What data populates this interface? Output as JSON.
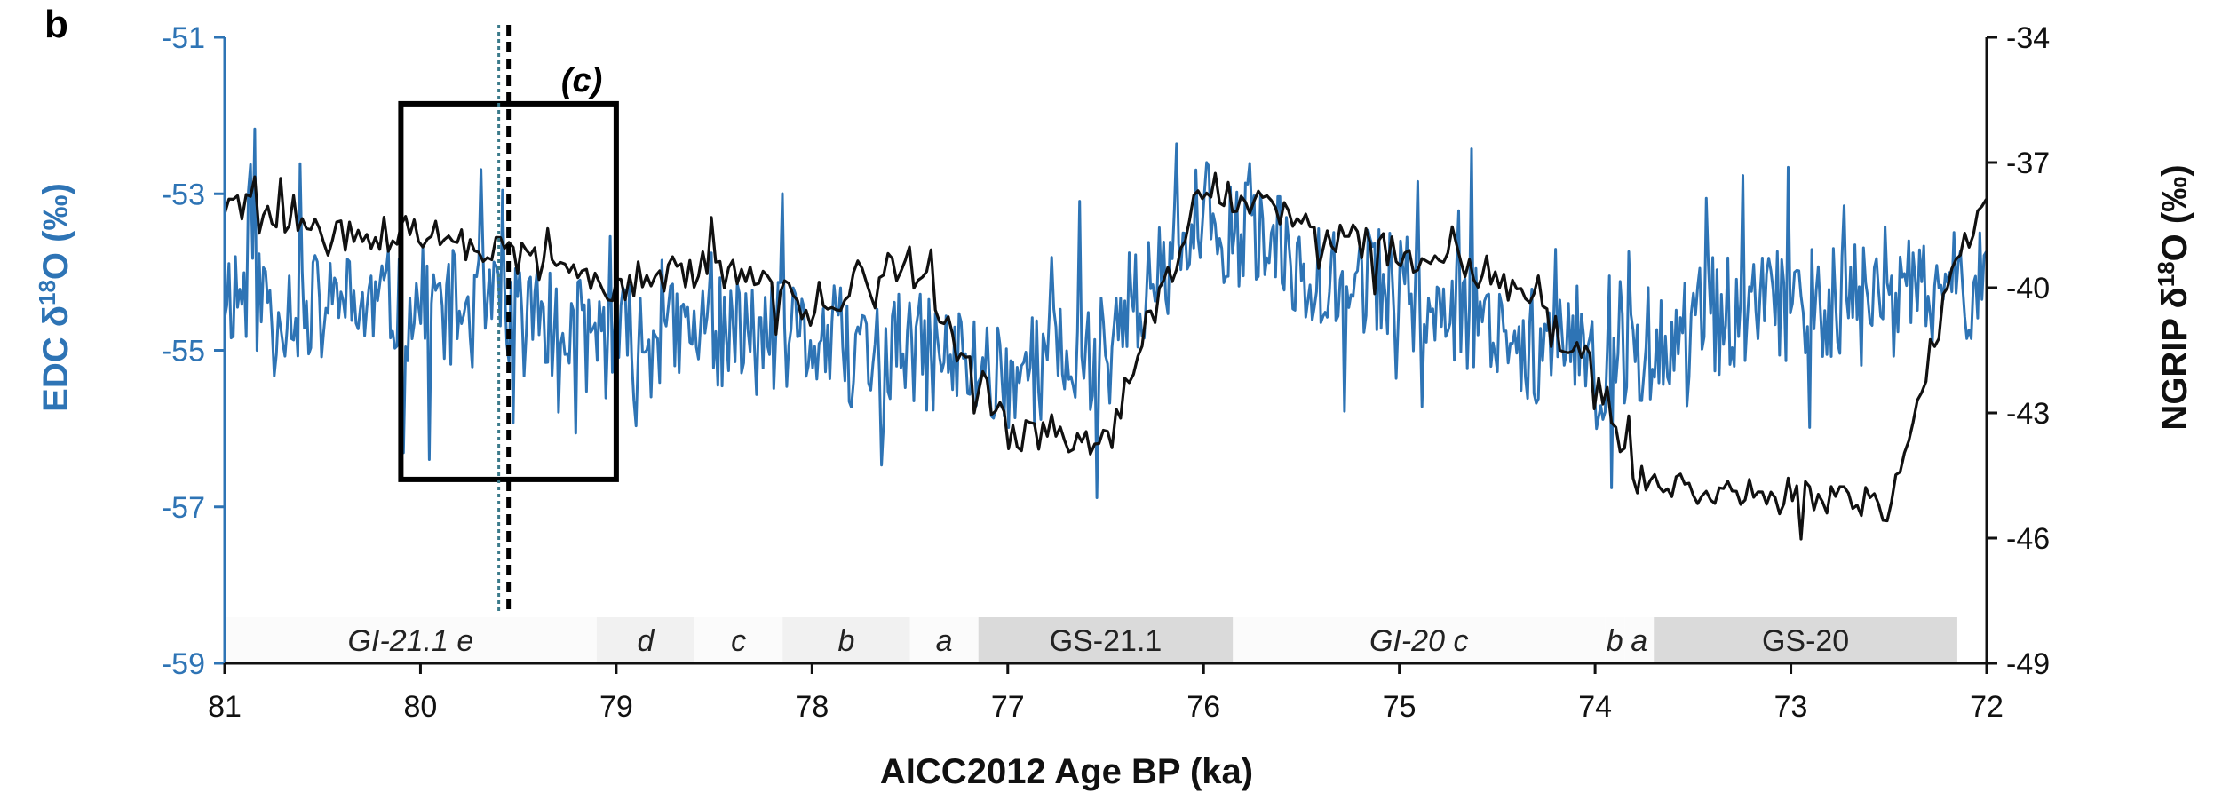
{
  "chart_data": {
    "type": "line",
    "panel_label": "b",
    "xlabel": "AICC2012 Age BP (ka)",
    "xlim": [
      81,
      72
    ],
    "x_ticks": [
      81,
      80,
      79,
      78,
      77,
      76,
      75,
      74,
      73,
      72
    ],
    "x_tick_labels": [
      "81",
      "80",
      "79",
      "78",
      "77",
      "76",
      "75",
      "74",
      "73",
      "72"
    ],
    "y_left": {
      "label_main": "EDC δ",
      "label_sup": "18",
      "label_end": "O (‰)",
      "lim": [
        -59,
        -51
      ],
      "ticks": [
        -51,
        -53,
        -55,
        -57,
        -59
      ],
      "tick_labels": [
        "-51",
        "-53",
        "-55",
        "-57",
        "-59"
      ],
      "color": "#2e74b5"
    },
    "y_right": {
      "label_main": "NGRIP δ",
      "label_sup": "18",
      "label_end": "O (‰)",
      "lim": [
        -49,
        -34
      ],
      "ticks": [
        -34,
        -37,
        -40,
        -43,
        -46,
        -49
      ],
      "tick_labels": [
        "-34",
        "-37",
        "-40",
        "-43",
        "-46",
        "-49"
      ],
      "color": "#111111"
    },
    "series": [
      {
        "color": "#2e74b5",
        "axis": "left",
        "x": [
          81.0,
          80.5,
          80.0,
          79.5,
          79.0,
          78.5,
          78.0,
          77.5,
          77.0,
          76.5,
          76.0,
          75.5,
          75.0,
          74.5,
          74.0,
          73.5,
          73.0,
          72.5,
          72.0
        ],
        "y": [
          -54.2,
          -54.5,
          -54.4,
          -54.6,
          -54.9,
          -54.8,
          -54.9,
          -55.0,
          -55.3,
          -55.0,
          -53.3,
          -53.9,
          -54.2,
          -54.7,
          -55.3,
          -54.6,
          -54.4,
          -54.4,
          -54.1
        ]
      },
      {
        "color": "#111111",
        "axis": "right",
        "x": [
          81.0,
          80.5,
          80.0,
          79.5,
          79.0,
          78.5,
          78.0,
          77.5,
          77.0,
          76.5,
          76.0,
          75.5,
          75.0,
          74.5,
          74.0,
          73.8,
          73.5,
          73.0,
          72.5,
          72.2,
          72.0
        ],
        "y": [
          -38.0,
          -38.8,
          -38.7,
          -39.3,
          -39.9,
          -39.5,
          -40.5,
          -39.3,
          -43.5,
          -43.8,
          -37.5,
          -38.5,
          -39.2,
          -39.7,
          -42.0,
          -44.5,
          -44.8,
          -45.0,
          -45.3,
          -40.0,
          -37.5
        ]
      }
    ],
    "annotations": {
      "box_label": "(c)",
      "box": {
        "x0": 80.1,
        "x1": 79.0,
        "y_top": -51.85,
        "y_bottom": -56.65
      },
      "dashed_line_x": 79.55,
      "dotted_line_x": 79.6
    },
    "periods": [
      {
        "label": "GI-21.1 e",
        "x0": 81.0,
        "x1": 79.1,
        "shade": "white",
        "italic": true
      },
      {
        "label": "d",
        "x0": 79.1,
        "x1": 78.6,
        "shade": "light",
        "italic": true
      },
      {
        "label": "c",
        "x0": 78.6,
        "x1": 78.15,
        "shade": "white",
        "italic": true
      },
      {
        "label": "b",
        "x0": 78.15,
        "x1": 77.5,
        "shade": "light",
        "italic": true
      },
      {
        "label": "a",
        "x0": 77.5,
        "x1": 77.15,
        "shade": "white",
        "italic": true
      },
      {
        "label": "GS-21.1",
        "x0": 77.15,
        "x1": 75.85,
        "shade": "gray",
        "italic": false
      },
      {
        "label": "GI-20 c",
        "x0": 75.85,
        "x1": 73.95,
        "shade": "white",
        "italic": true
      },
      {
        "label": "b",
        "x0": 73.95,
        "x1": 73.85,
        "shade": "white",
        "italic": true
      },
      {
        "label": "a",
        "x0": 73.85,
        "x1": 73.7,
        "shade": "white",
        "italic": true
      },
      {
        "label": "GS-20",
        "x0": 73.7,
        "x1": 72.15,
        "shade": "gray",
        "italic": false
      }
    ],
    "colors": {
      "edc": "#2e74b5",
      "ngrip": "#111111",
      "shade_light": "#f1f1f1",
      "shade_gray": "#dadada",
      "shade_white": "#fbfbfb"
    }
  }
}
